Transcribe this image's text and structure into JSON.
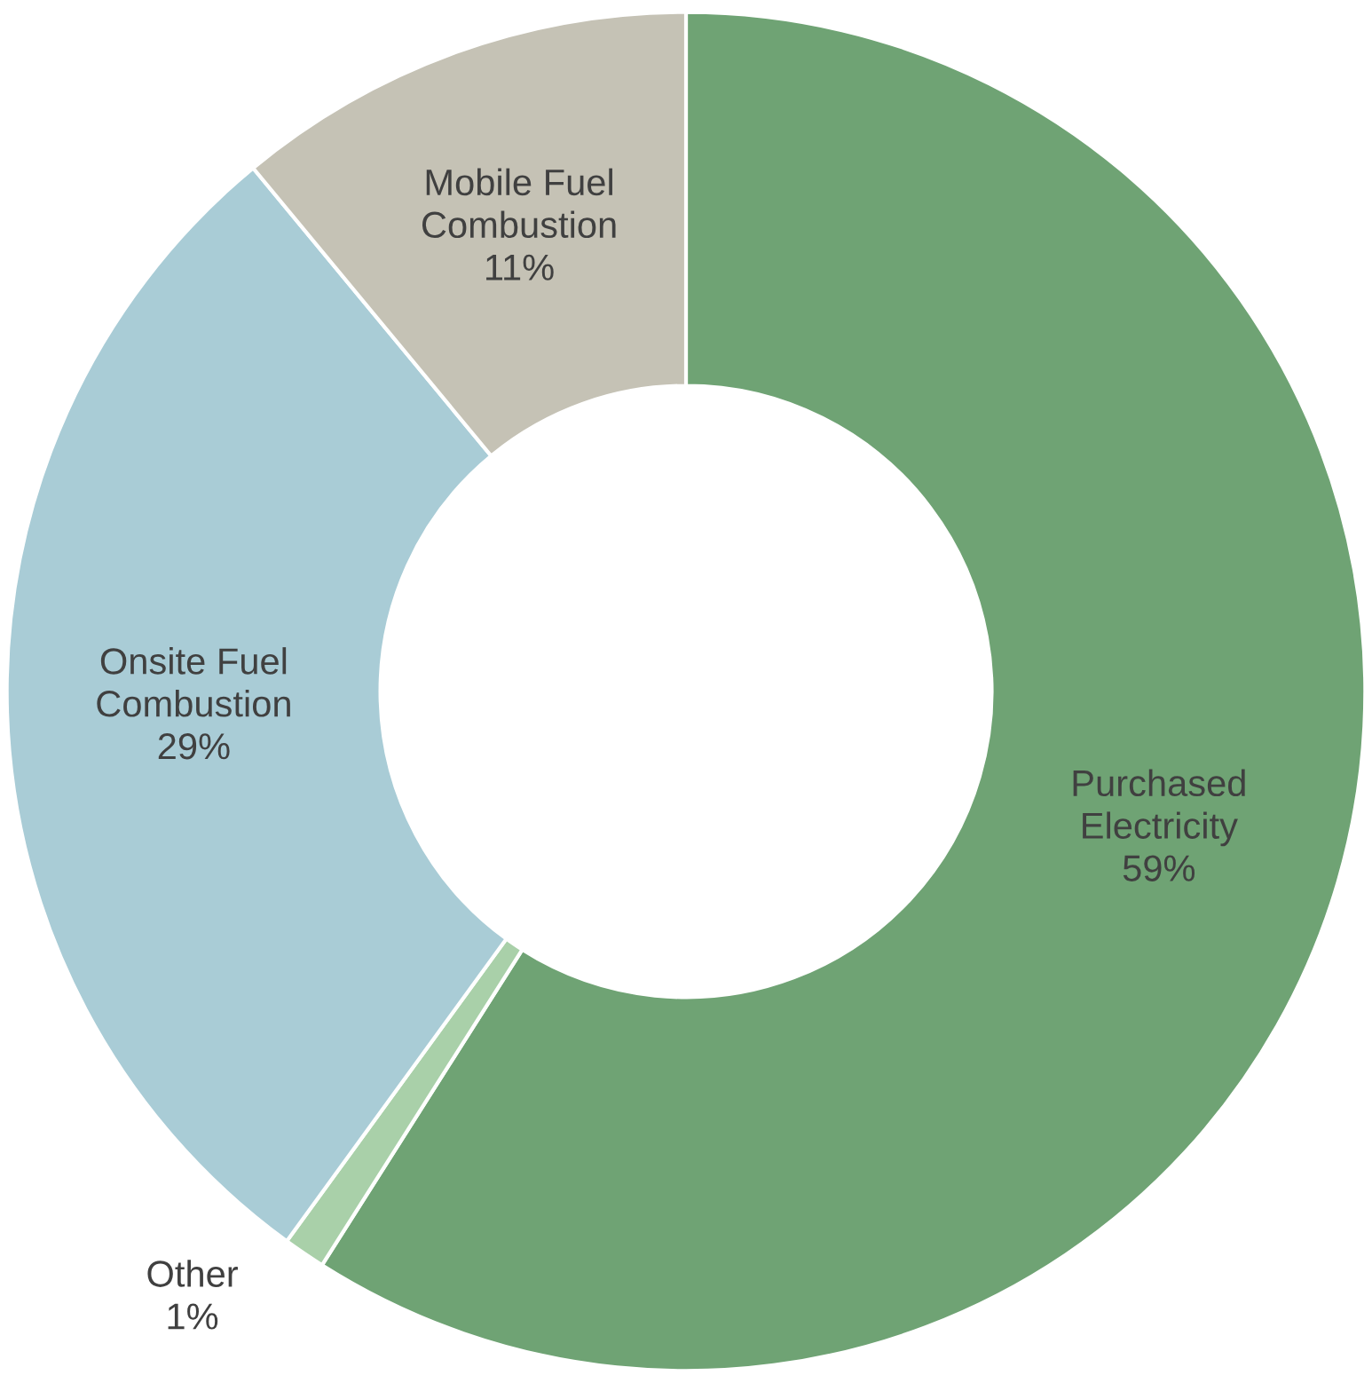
{
  "chart_data": {
    "type": "donut",
    "categories": [
      "Purchased Electricity",
      "Other",
      "Onsite Fuel Combustion",
      "Mobile Fuel Combustion"
    ],
    "values": [
      59,
      1,
      29,
      11
    ],
    "colors": [
      "#6fa374",
      "#a9d0a9",
      "#a9ccd6",
      "#c5c2b5"
    ],
    "value_labels": [
      "59%",
      "1%",
      "29%",
      "11%"
    ]
  }
}
